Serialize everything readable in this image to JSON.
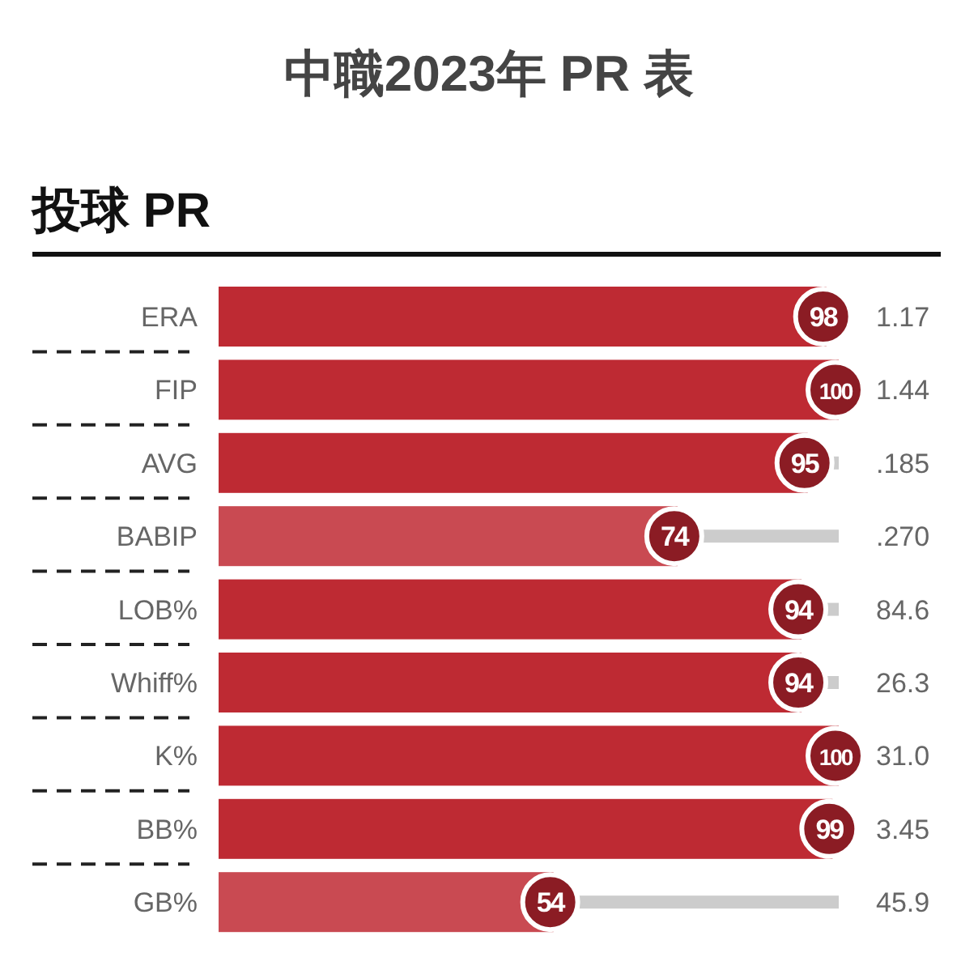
{
  "chart_data": {
    "type": "bar",
    "orientation": "horizontal",
    "title": "中職2023年 PR 表",
    "subtitle": "投球 PR",
    "categories": [
      "ERA",
      "FIP",
      "AVG",
      "BABIP",
      "LOB%",
      "Whiff%",
      "K%",
      "BB%",
      "GB%"
    ],
    "stacked": true,
    "series": [
      {
        "values": [
          98,
          100,
          95,
          74,
          94,
          94,
          100,
          99,
          54
        ],
        "value_labels": [
          "98",
          "100",
          "95",
          "74",
          "94",
          "94",
          "100",
          "99",
          "54"
        ],
        "colors": [
          "#be2a33",
          "#be2a33",
          "#be2a33",
          "#c94a52",
          "#be2a33",
          "#be2a33",
          "#be2a33",
          "#be2a33",
          "#c94a52"
        ]
      },
      {
        "color": "#cccccc",
        "values": [
          null,
          null,
          5,
          26,
          6,
          6,
          null,
          null,
          46
        ]
      }
    ],
    "xlim": [
      0,
      100
    ],
    "annotations": [
      "1.17",
      "1.44",
      ".185",
      ".270",
      "84.6",
      "26.3",
      "31.0",
      "3.45",
      "45.9"
    ]
  }
}
